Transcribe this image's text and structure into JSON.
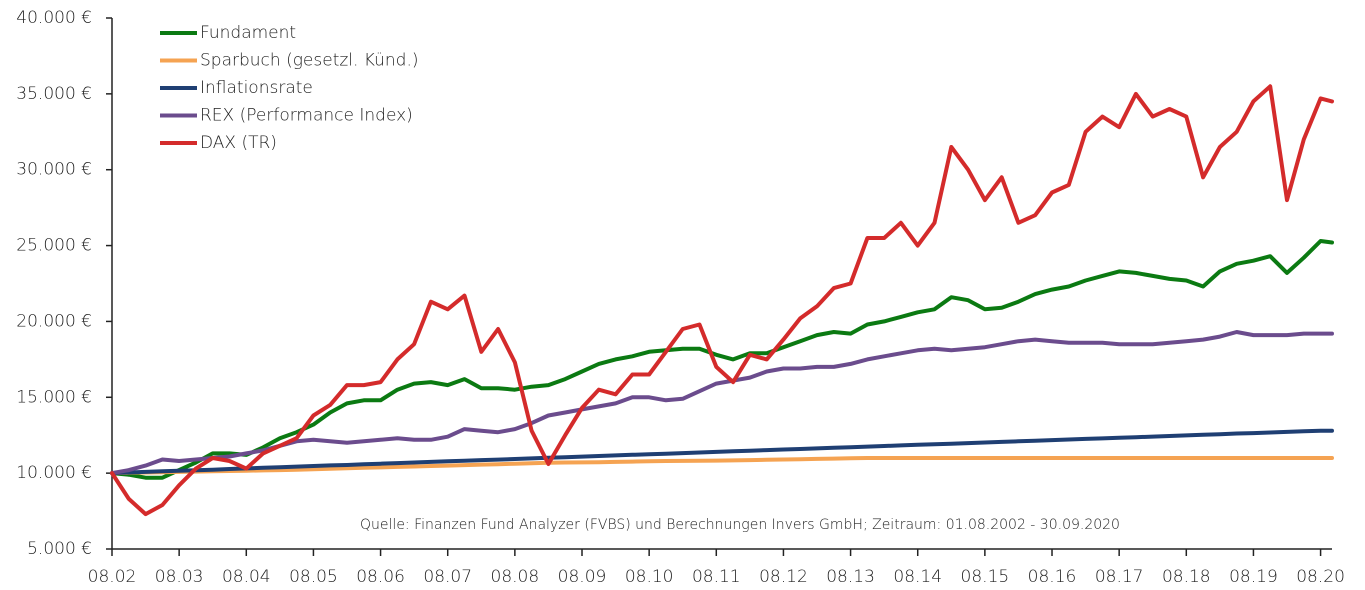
{
  "chart_data": {
    "type": "line",
    "annotation": "Quelle: Finanzen Fund Analyzer (FVBS) und Berechnungen Invers GmbH; Zeitraum: 01.08.2002 - 30.09.2020",
    "legend": "upper left",
    "x": [
      2002.58,
      2002.83,
      2003.08,
      2003.33,
      2003.58,
      2003.83,
      2004.08,
      2004.33,
      2004.58,
      2004.83,
      2005.08,
      2005.33,
      2005.58,
      2005.83,
      2006.08,
      2006.33,
      2006.58,
      2006.83,
      2007.08,
      2007.33,
      2007.58,
      2007.83,
      2008.08,
      2008.33,
      2008.58,
      2008.83,
      2009.08,
      2009.33,
      2009.58,
      2009.83,
      2010.08,
      2010.33,
      2010.58,
      2010.83,
      2011.08,
      2011.33,
      2011.58,
      2011.83,
      2012.08,
      2012.33,
      2012.58,
      2012.83,
      2013.08,
      2013.33,
      2013.58,
      2013.83,
      2014.08,
      2014.33,
      2014.58,
      2014.83,
      2015.08,
      2015.33,
      2015.58,
      2015.83,
      2016.08,
      2016.33,
      2016.58,
      2016.83,
      2017.08,
      2017.33,
      2017.58,
      2017.83,
      2018.08,
      2018.33,
      2018.58,
      2018.83,
      2019.08,
      2019.33,
      2019.58,
      2019.83,
      2020.08,
      2020.33,
      2020.58,
      2020.75
    ],
    "xlim": [
      2002.58,
      2020.75
    ],
    "xticks": [
      {
        "value": 2002.58,
        "label": "08.02"
      },
      {
        "value": 2003.58,
        "label": "08.03"
      },
      {
        "value": 2004.58,
        "label": "08.04"
      },
      {
        "value": 2005.58,
        "label": "08.05"
      },
      {
        "value": 2006.58,
        "label": "08.06"
      },
      {
        "value": 2007.58,
        "label": "08.07"
      },
      {
        "value": 2008.58,
        "label": "08.08"
      },
      {
        "value": 2009.58,
        "label": "08.09"
      },
      {
        "value": 2010.58,
        "label": "08.10"
      },
      {
        "value": 2011.58,
        "label": "08.11"
      },
      {
        "value": 2012.58,
        "label": "08.12"
      },
      {
        "value": 2013.58,
        "label": "08.13"
      },
      {
        "value": 2014.58,
        "label": "08.14"
      },
      {
        "value": 2015.58,
        "label": "08.15"
      },
      {
        "value": 2016.58,
        "label": "08.16"
      },
      {
        "value": 2017.58,
        "label": "08.17"
      },
      {
        "value": 2018.58,
        "label": "08.18"
      },
      {
        "value": 2019.58,
        "label": "08.19"
      },
      {
        "value": 2020.58,
        "label": "08.20"
      }
    ],
    "ylim": [
      5000,
      40000
    ],
    "yticks": [
      {
        "value": 5000,
        "label": "5.000 €"
      },
      {
        "value": 10000,
        "label": "10.000 €"
      },
      {
        "value": 15000,
        "label": "15.000 €"
      },
      {
        "value": 20000,
        "label": "20.000 €"
      },
      {
        "value": 25000,
        "label": "25.000 €"
      },
      {
        "value": 30000,
        "label": "30.000 €"
      },
      {
        "value": 35000,
        "label": "35.000 €"
      },
      {
        "value": 40000,
        "label": "40.000 €"
      }
    ],
    "series": [
      {
        "name": "Fundament",
        "color": "#0b7a12",
        "values": [
          10000,
          9900,
          9700,
          9700,
          10200,
          10700,
          11300,
          11300,
          11200,
          11700,
          12300,
          12700,
          13200,
          14000,
          14600,
          14800,
          14800,
          15500,
          15900,
          16000,
          15800,
          16200,
          15600,
          15600,
          15500,
          15700,
          15800,
          16200,
          16700,
          17200,
          17500,
          17700,
          18000,
          18100,
          18200,
          18200,
          17800,
          17500,
          17900,
          17900,
          18300,
          18700,
          19100,
          19300,
          19200,
          19800,
          20000,
          20300,
          20600,
          20800,
          21600,
          21400,
          20800,
          20900,
          21300,
          21800,
          22100,
          22300,
          22700,
          23000,
          23300,
          23200,
          23000,
          22800,
          22700,
          22300,
          23300,
          23800,
          24000,
          24300,
          23200,
          24200,
          25300,
          25200
        ]
      },
      {
        "name": "Sparbuch (gesetzl. Künd.)",
        "color": "#f5a352",
        "values": [
          10000,
          10020,
          10040,
          10060,
          10080,
          10100,
          10120,
          10140,
          10160,
          10180,
          10200,
          10230,
          10260,
          10290,
          10320,
          10350,
          10380,
          10410,
          10440,
          10470,
          10500,
          10530,
          10560,
          10590,
          10620,
          10650,
          10680,
          10700,
          10710,
          10720,
          10740,
          10760,
          10780,
          10800,
          10810,
          10820,
          10830,
          10840,
          10860,
          10880,
          10900,
          10920,
          10940,
          10960,
          10980,
          11000,
          11000,
          11000,
          11000,
          11000,
          11000,
          11000,
          11000,
          11000,
          11000,
          11000,
          11000,
          11000,
          11000,
          11000,
          11000,
          11000,
          11000,
          11000,
          11000,
          11000,
          11000,
          11000,
          11000,
          11000,
          11000,
          11000,
          11000,
          11000
        ]
      },
      {
        "name": "Inflationsrate",
        "color": "#1f3f73",
        "values": [
          10000,
          10040,
          10080,
          10120,
          10160,
          10190,
          10230,
          10270,
          10310,
          10350,
          10390,
          10430,
          10470,
          10510,
          10540,
          10580,
          10620,
          10660,
          10700,
          10740,
          10780,
          10820,
          10860,
          10890,
          10930,
          10970,
          11010,
          11050,
          11090,
          11130,
          11170,
          11210,
          11240,
          11280,
          11320,
          11360,
          11400,
          11440,
          11480,
          11520,
          11560,
          11590,
          11630,
          11670,
          11710,
          11750,
          11790,
          11830,
          11870,
          11910,
          11940,
          11980,
          12020,
          12060,
          12100,
          12140,
          12180,
          12220,
          12260,
          12290,
          12330,
          12370,
          12410,
          12450,
          12490,
          12530,
          12570,
          12610,
          12640,
          12680,
          12720,
          12760,
          12800,
          12800
        ]
      },
      {
        "name": "REX (Performance Index)",
        "color": "#6b4c8d",
        "values": [
          10000,
          10200,
          10500,
          10900,
          10800,
          10900,
          11000,
          11100,
          11300,
          11500,
          11800,
          12100,
          12200,
          12100,
          12000,
          12100,
          12200,
          12300,
          12200,
          12200,
          12400,
          12900,
          12800,
          12700,
          12900,
          13300,
          13800,
          14000,
          14200,
          14400,
          14600,
          15000,
          15000,
          14800,
          14900,
          15400,
          15900,
          16100,
          16300,
          16700,
          16900,
          16900,
          17000,
          17000,
          17200,
          17500,
          17700,
          17900,
          18100,
          18200,
          18100,
          18200,
          18300,
          18500,
          18700,
          18800,
          18700,
          18600,
          18600,
          18600,
          18500,
          18500,
          18500,
          18600,
          18700,
          18800,
          19000,
          19300,
          19100,
          19100,
          19100,
          19200,
          19200,
          19200
        ]
      },
      {
        "name": "DAX (TR)",
        "color": "#d42b2b",
        "values": [
          10000,
          8300,
          7300,
          7900,
          9200,
          10300,
          11000,
          10800,
          10300,
          11300,
          11800,
          12300,
          13800,
          14500,
          15800,
          15800,
          16000,
          17500,
          18500,
          21300,
          20800,
          21700,
          18000,
          19500,
          17300,
          12800,
          10600,
          12500,
          14300,
          15500,
          15200,
          16500,
          16500,
          18000,
          19500,
          19800,
          17000,
          16000,
          17800,
          17500,
          18800,
          20200,
          21000,
          22200,
          22500,
          25500,
          25500,
          26500,
          25000,
          26500,
          31500,
          30000,
          28000,
          29500,
          26500,
          27000,
          28500,
          29000,
          32500,
          33500,
          32800,
          35000,
          33500,
          34000,
          33500,
          29500,
          31500,
          32500,
          34500,
          35500,
          28000,
          32000,
          34700,
          34500
        ]
      }
    ]
  }
}
